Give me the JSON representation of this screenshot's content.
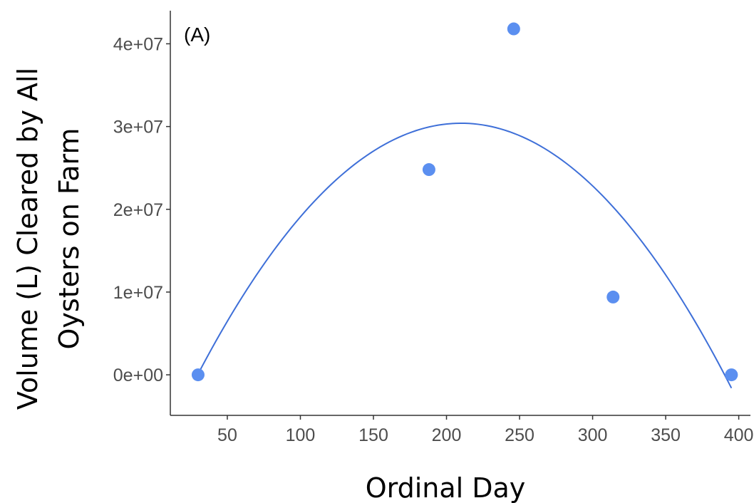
{
  "chart_data": {
    "type": "scatter",
    "panel_label": "(A)",
    "xlabel": "Ordinal Day",
    "ylabel": [
      "Volume (L) Cleared by All",
      "Oysters on Farm"
    ],
    "xlim": [
      11,
      408
    ],
    "ylim": [
      -4900000,
      44000000
    ],
    "x_ticks": [
      50,
      100,
      150,
      200,
      250,
      300,
      350,
      400
    ],
    "x_tick_labels": [
      "50",
      "100",
      "150",
      "200",
      "250",
      "300",
      "350",
      "400"
    ],
    "y_ticks": [
      0,
      10000000,
      20000000,
      30000000,
      40000000
    ],
    "y_tick_labels": [
      "0e+00",
      "1e+07",
      "2e+07",
      "3e+07",
      "4e+07"
    ],
    "grid": false,
    "points": [
      {
        "x": 30,
        "y": 0
      },
      {
        "x": 188,
        "y": 24800000
      },
      {
        "x": 246,
        "y": 41800000
      },
      {
        "x": 314,
        "y": 9400000
      },
      {
        "x": 395,
        "y": 0
      }
    ],
    "fit": {
      "type": "quadratic",
      "vertex_x": 210,
      "vertex_y": 30400000,
      "a": -935,
      "x_range": [
        30,
        395
      ]
    },
    "colors": {
      "points": "#5b8ff0",
      "fit_line": "#3e6fd8",
      "axis": "#333333",
      "tick_label": "#4d4d4d"
    }
  }
}
